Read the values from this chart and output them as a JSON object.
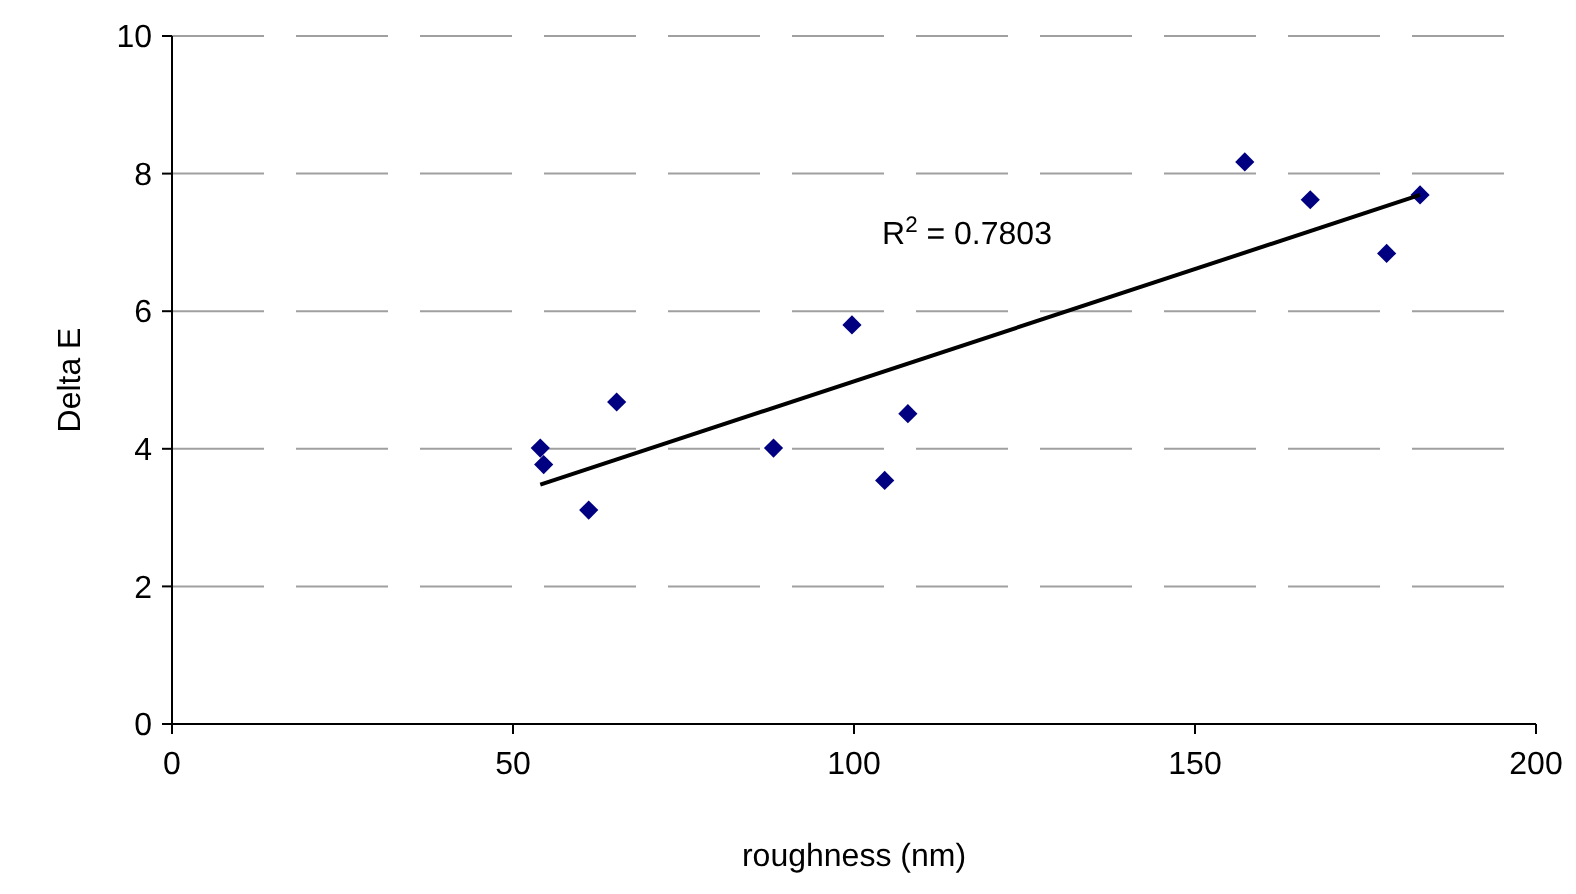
{
  "chart_data": {
    "type": "scatter",
    "xlabel": "roughness (nm)",
    "ylabel": "Delta E",
    "xlim": [
      0,
      200
    ],
    "xticks": [
      0,
      50,
      100,
      150,
      200
    ],
    "ylim": [
      0,
      10
    ],
    "yticks": [
      0,
      2,
      4,
      6,
      8,
      10
    ],
    "grid": "y",
    "marker": "diamond",
    "series": [
      {
        "color": "#000080",
        "x": [
          54.0,
          54.5,
          61.1,
          65.2,
          88.2,
          99.7,
          104.5,
          107.9,
          157.3,
          166.9,
          178.1,
          183.0
        ],
        "values": [
          4.01,
          3.77,
          3.11,
          4.68,
          4.01,
          5.8,
          3.54,
          4.51,
          8.17,
          7.62,
          6.84,
          7.69
        ]
      },
      {
        "type": "line",
        "color": "#000000",
        "line_style": "solid",
        "marker": "none",
        "x": [
          54.0,
          183.0
        ],
        "values": [
          3.48,
          7.69
        ]
      }
    ],
    "annotations": [
      "R$^{2}$ = 0.7803"
    ]
  }
}
